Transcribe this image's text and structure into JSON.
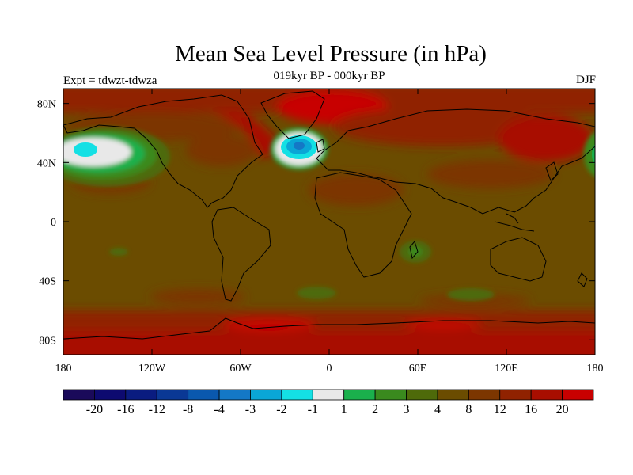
{
  "title": "Mean Sea Level Pressure (in hPa)",
  "subtitle": "019kyr BP - 000kyr BP",
  "left_label": "Expt = tdwzt-tdwza",
  "right_label": "DJF",
  "map": {
    "lon_range": [
      -180,
      180
    ],
    "lat_range": [
      -90,
      90
    ],
    "x_ticks": [
      {
        "lon": -180,
        "label": "180"
      },
      {
        "lon": -120,
        "label": "120W"
      },
      {
        "lon": -60,
        "label": "60W"
      },
      {
        "lon": 0,
        "label": "0"
      },
      {
        "lon": 60,
        "label": "60E"
      },
      {
        "lon": 120,
        "label": "120E"
      },
      {
        "lon": 180,
        "label": "180"
      }
    ],
    "y_ticks": [
      {
        "lat": 80,
        "label": "80N"
      },
      {
        "lat": 40,
        "label": "40N"
      },
      {
        "lat": 0,
        "label": "0"
      },
      {
        "lat": -40,
        "label": "40S"
      },
      {
        "lat": -80,
        "label": "80S"
      }
    ],
    "background_color": "#6b4c00"
  },
  "colorbar": {
    "colors": [
      "#1a0a5a",
      "#0d0a70",
      "#0a1c80",
      "#0a3895",
      "#0a58ae",
      "#1478c6",
      "#0aa6d6",
      "#14e0e4",
      "#e8e8e8",
      "#1ab04c",
      "#3a8a1e",
      "#4e6a0a",
      "#6b4c00",
      "#7c3600",
      "#902200",
      "#a80e00",
      "#c80000"
    ],
    "labels": [
      "-20",
      "-16",
      "-12",
      "-8",
      "-4",
      "-3",
      "-2",
      "-1",
      "1",
      "2",
      "3",
      "4",
      "8",
      "12",
      "16",
      "20"
    ]
  }
}
